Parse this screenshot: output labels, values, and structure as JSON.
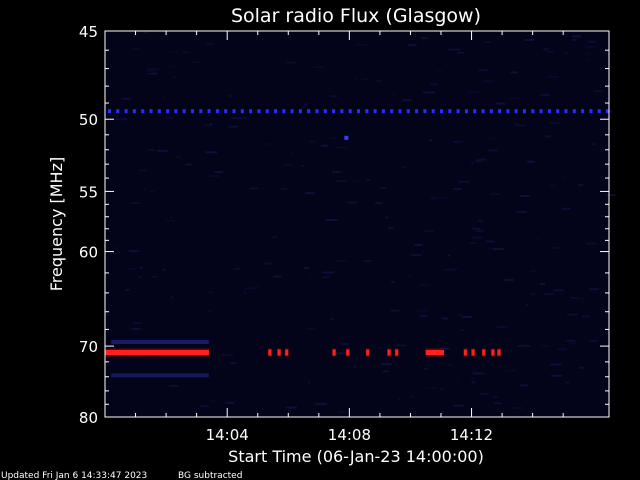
{
  "chart_data": {
    "type": "heatmap",
    "title": "Solar radio Flux (Glasgow)",
    "xlabel": "Start Time (06-Jan-23 14:00:00)",
    "ylabel": "Frequency [MHz]",
    "x_axis": {
      "unit": "minutes after 14:00",
      "range": [
        0,
        16.5
      ],
      "ticks": [
        {
          "value": 4,
          "label": "14:04"
        },
        {
          "value": 8,
          "label": "14:08"
        },
        {
          "value": 12,
          "label": "14:12"
        }
      ]
    },
    "y_axis": {
      "scale": "reciprocal",
      "range": [
        45,
        80
      ],
      "direction": "increasing downward",
      "ticks": [
        45,
        50,
        55,
        60,
        70,
        80
      ]
    },
    "background": "dark navy noise (BG subtracted)",
    "features": [
      {
        "kind": "dotted constant line",
        "freq_mhz": 49.5,
        "t_start": 0,
        "t_end": 16.5,
        "color": "#2b2bff"
      },
      {
        "kind": "isolated point",
        "freq_mhz": 51.2,
        "t": 7.9,
        "color": "#3a3aff"
      },
      {
        "kind": "intense band",
        "freq_mhz": 70.8,
        "t_start": 0,
        "t_end": 3.4,
        "color": "#ff2020"
      },
      {
        "kind": "intense band",
        "freq_mhz": 70.8,
        "t_start": 10.5,
        "t_end": 11.1,
        "color": "#ff2020"
      },
      {
        "kind": "faint band",
        "freq_mhz": 69.5,
        "t_start": 0.2,
        "t_end": 3.4,
        "color": "#1a1a6a"
      },
      {
        "kind": "faint band",
        "freq_mhz": 73.8,
        "t_start": 0.2,
        "t_end": 3.4,
        "color": "#16165a"
      },
      {
        "kind": "spike set",
        "freq_mhz": 70.8,
        "times": [
          5.4,
          5.7,
          5.95,
          7.5,
          7.95,
          8.6,
          9.3,
          9.55,
          11.8,
          12.05,
          12.4,
          12.7,
          12.9
        ],
        "color": "#ff2020"
      }
    ]
  },
  "footer": {
    "updated": "Updated Fri Jan  6 14:33:47 2023",
    "bg_note": "BG subtracted"
  }
}
